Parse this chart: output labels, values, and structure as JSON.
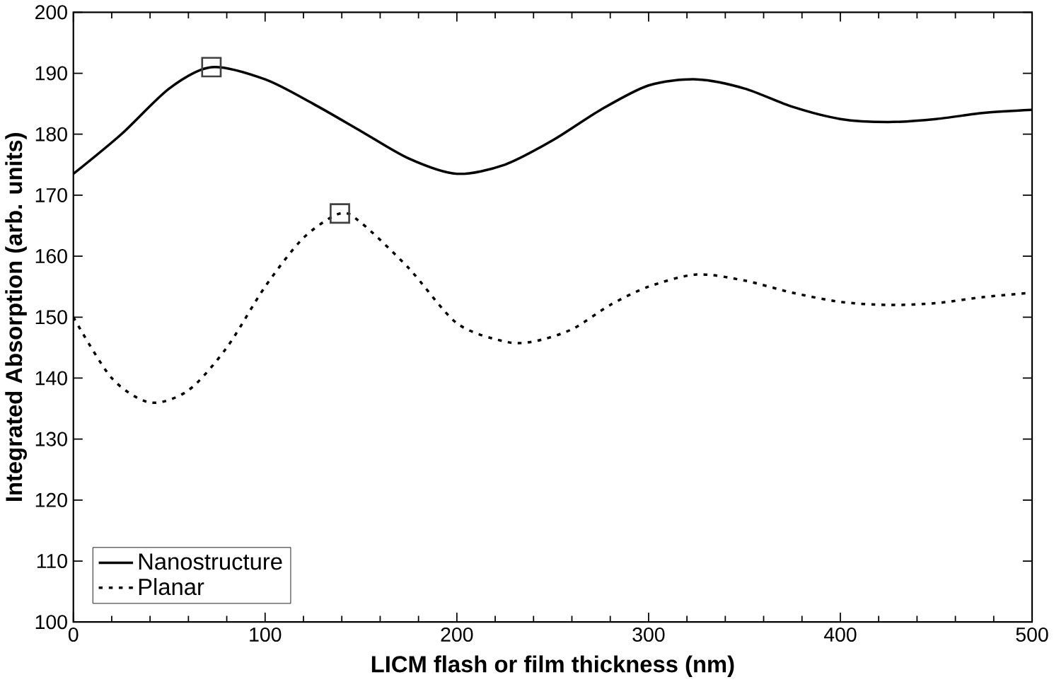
{
  "chart_data": {
    "type": "line",
    "xlabel": "LICM flash or film thickness (nm)",
    "ylabel": "Integrated Absorption (arb. units)",
    "xlim": [
      0,
      500
    ],
    "xticks": [
      0,
      100,
      200,
      300,
      400,
      500
    ],
    "ylim": [
      100,
      200
    ],
    "yticks": [
      100,
      110,
      120,
      130,
      140,
      150,
      160,
      170,
      180,
      190,
      200
    ],
    "legend": "bottom left",
    "grid": false,
    "series": [
      {
        "name": "Nanostructure",
        "color": "#000000",
        "line_style": "solid",
        "marker": "none",
        "x": [
          0,
          25,
          50,
          72,
          100,
          125,
          150,
          175,
          200,
          225,
          250,
          275,
          300,
          325,
          350,
          375,
          400,
          425,
          450,
          475,
          500
        ],
        "values": [
          173.5,
          180,
          187.5,
          191,
          189,
          185,
          180.5,
          176,
          173.5,
          175,
          179,
          184,
          188,
          189,
          187.5,
          184.5,
          182.5,
          182,
          182.5,
          183.5,
          184
        ]
      },
      {
        "name": "Planar",
        "color": "#000000",
        "line_style": "dotted",
        "marker": "none",
        "x": [
          0,
          20,
          40,
          60,
          80,
          100,
          120,
          139,
          150,
          175,
          200,
          225,
          240,
          260,
          280,
          300,
          325,
          350,
          375,
          400,
          425,
          450,
          475,
          500
        ],
        "values": [
          150,
          140,
          136,
          138,
          145,
          155,
          163,
          167,
          165.5,
          158,
          149,
          146,
          146,
          148,
          152,
          155,
          157,
          156,
          154,
          152.5,
          152,
          152.3,
          153.3,
          154
        ]
      },
      {
        "type": "scatter",
        "color": "#404040",
        "marker": "square",
        "x": [
          72,
          139
        ],
        "values": [
          191,
          167
        ]
      }
    ]
  }
}
